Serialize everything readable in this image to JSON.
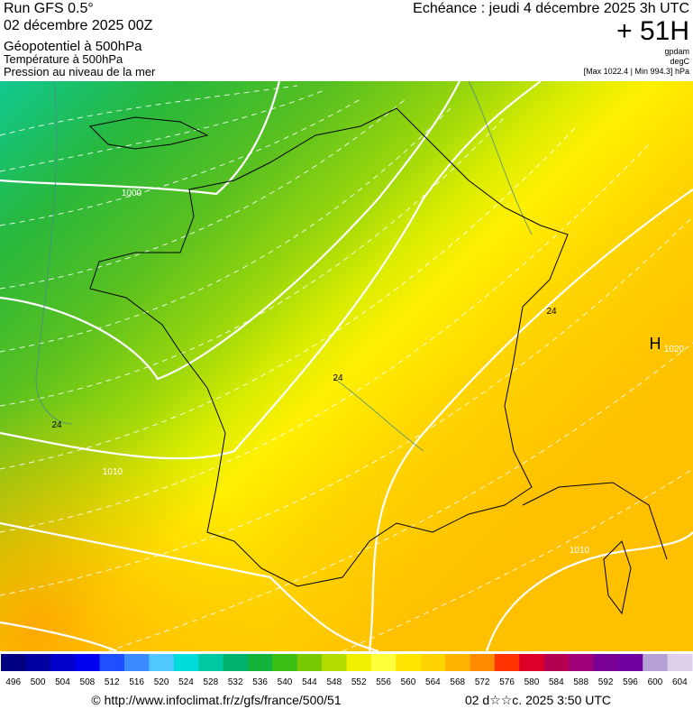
{
  "header": {
    "run": "Run GFS 0.5°",
    "date": "02 décembre 2025 00Z",
    "field1": "Géopotentiel à 500hPa",
    "field2": "Température à 500hPa",
    "field3": "Pression au niveau de la mer",
    "echeance": "Echéance : jeudi 4 décembre 2025 3h UTC",
    "lead": "+ 51H",
    "unit1": "gpdam",
    "unit2": "degC",
    "extremes": "[Max 1022.4 | Min 994.3] hPa"
  },
  "map_labels": {
    "isobar_1000": "1000",
    "isobar_1010_west": "1010",
    "isobar_1010_east": "1010",
    "high": "H",
    "high_value": "1020",
    "temp_west": "24",
    "temp_center": "24",
    "temp_east": "24"
  },
  "colorbar": {
    "labels": [
      496,
      500,
      504,
      508,
      512,
      516,
      520,
      524,
      528,
      532,
      536,
      540,
      544,
      548,
      552,
      556,
      560,
      564,
      568,
      572,
      576,
      580,
      584,
      588,
      592,
      596,
      600,
      604
    ],
    "colors": [
      "#000080",
      "#0000a0",
      "#0000c8",
      "#0000f0",
      "#1e50ff",
      "#3c8cff",
      "#50c8ff",
      "#00dcdc",
      "#00c8a0",
      "#00b46e",
      "#14b43c",
      "#3cbe14",
      "#78c800",
      "#b4dc00",
      "#f0f000",
      "#ffff3c",
      "#ffe600",
      "#ffd200",
      "#ffb400",
      "#ff8c00",
      "#ff3200",
      "#dc0028",
      "#b40050",
      "#a00078",
      "#780096",
      "#6e00a0",
      "#b4a0d2",
      "#dcd0ec"
    ]
  },
  "footer": {
    "url": "© http://www.infoclimat.fr/z/gfs/france/500/51",
    "timestamp": "02 d☆☆c. 2025  3:50 UTC"
  }
}
